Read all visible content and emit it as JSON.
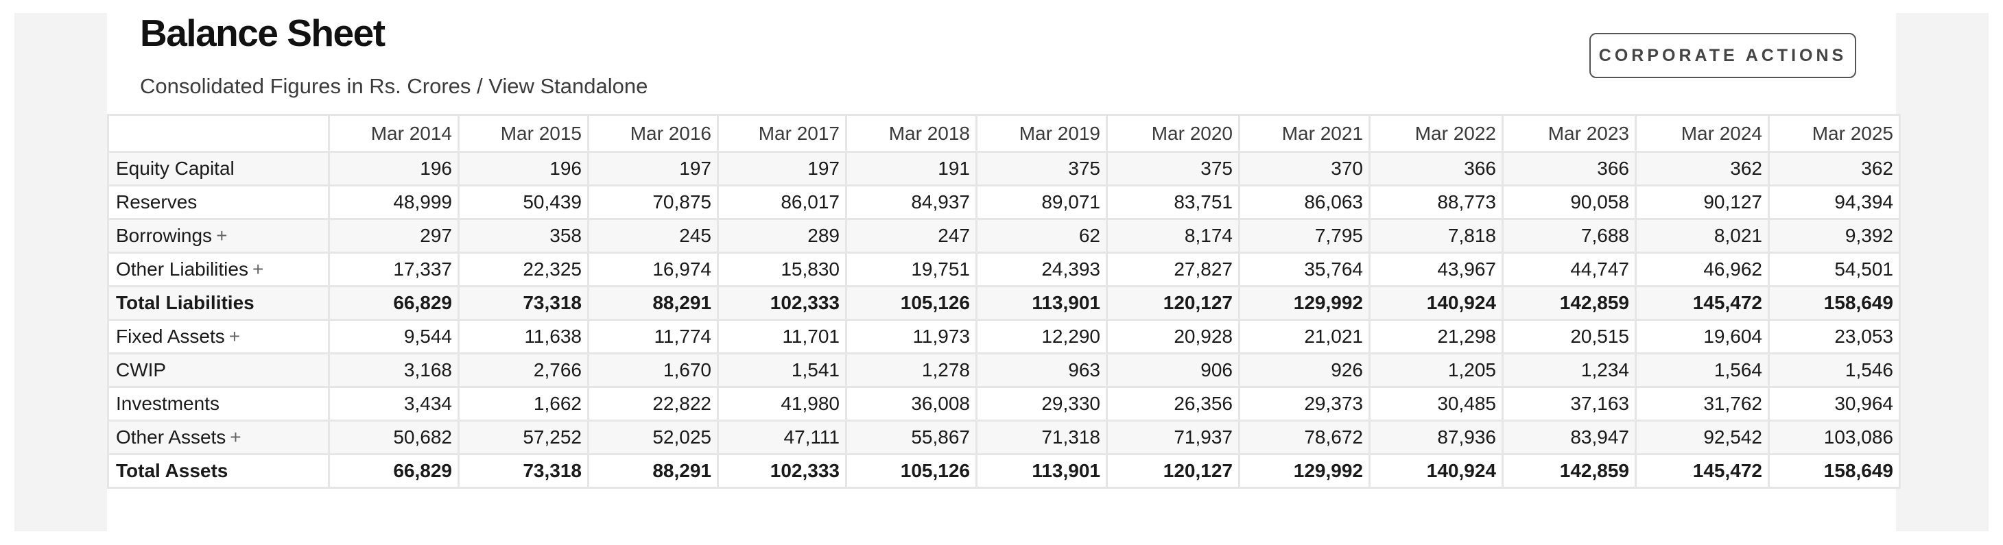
{
  "header": {
    "title": "Balance Sheet",
    "subtitle_prefix": "Consolidated Figures in Rs. Crores / ",
    "subtitle_link": "View Standalone",
    "corporate_actions_label": "CORPORATE ACTIONS"
  },
  "table": {
    "columns": [
      "Mar 2014",
      "Mar 2015",
      "Mar 2016",
      "Mar 2017",
      "Mar 2018",
      "Mar 2019",
      "Mar 2020",
      "Mar 2021",
      "Mar 2022",
      "Mar 2023",
      "Mar 2024",
      "Mar 2025"
    ],
    "rows": [
      {
        "label": "Equity Capital",
        "expandable": false,
        "total": false,
        "plus": "",
        "values": [
          "196",
          "196",
          "197",
          "197",
          "191",
          "375",
          "375",
          "370",
          "366",
          "366",
          "362",
          "362"
        ]
      },
      {
        "label": "Reserves",
        "expandable": false,
        "total": false,
        "plus": "",
        "values": [
          "48,999",
          "50,439",
          "70,875",
          "86,017",
          "84,937",
          "89,071",
          "83,751",
          "86,063",
          "88,773",
          "90,058",
          "90,127",
          "94,394"
        ]
      },
      {
        "label": "Borrowings",
        "expandable": true,
        "total": false,
        "plus": "+",
        "values": [
          "297",
          "358",
          "245",
          "289",
          "247",
          "62",
          "8,174",
          "7,795",
          "7,818",
          "7,688",
          "8,021",
          "9,392"
        ]
      },
      {
        "label": "Other Liabilities",
        "expandable": true,
        "total": false,
        "plus": "+",
        "values": [
          "17,337",
          "22,325",
          "16,974",
          "15,830",
          "19,751",
          "24,393",
          "27,827",
          "35,764",
          "43,967",
          "44,747",
          "46,962",
          "54,501"
        ]
      },
      {
        "label": "Total Liabilities",
        "expandable": false,
        "total": true,
        "plus": "",
        "values": [
          "66,829",
          "73,318",
          "88,291",
          "102,333",
          "105,126",
          "113,901",
          "120,127",
          "129,992",
          "140,924",
          "142,859",
          "145,472",
          "158,649"
        ]
      },
      {
        "label": "Fixed Assets",
        "expandable": true,
        "total": false,
        "plus": "+",
        "values": [
          "9,544",
          "11,638",
          "11,774",
          "11,701",
          "11,973",
          "12,290",
          "20,928",
          "21,021",
          "21,298",
          "20,515",
          "19,604",
          "23,053"
        ]
      },
      {
        "label": "CWIP",
        "expandable": false,
        "total": false,
        "plus": "",
        "values": [
          "3,168",
          "2,766",
          "1,670",
          "1,541",
          "1,278",
          "963",
          "906",
          "926",
          "1,205",
          "1,234",
          "1,564",
          "1,546"
        ]
      },
      {
        "label": "Investments",
        "expandable": false,
        "total": false,
        "plus": "",
        "values": [
          "3,434",
          "1,662",
          "22,822",
          "41,980",
          "36,008",
          "29,330",
          "26,356",
          "29,373",
          "30,485",
          "37,163",
          "31,762",
          "30,964"
        ]
      },
      {
        "label": "Other Assets",
        "expandable": true,
        "total": false,
        "plus": "+",
        "values": [
          "50,682",
          "57,252",
          "52,025",
          "47,111",
          "55,867",
          "71,318",
          "71,937",
          "78,672",
          "87,936",
          "83,947",
          "92,542",
          "103,086"
        ]
      },
      {
        "label": "Total Assets",
        "expandable": false,
        "total": true,
        "plus": "",
        "values": [
          "66,829",
          "73,318",
          "88,291",
          "102,333",
          "105,126",
          "113,901",
          "120,127",
          "129,992",
          "140,924",
          "142,859",
          "145,472",
          "158,649"
        ]
      }
    ]
  }
}
